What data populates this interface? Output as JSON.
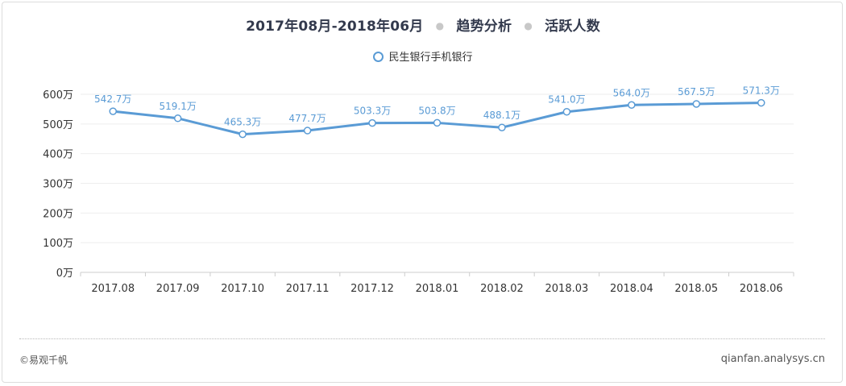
{
  "title": {
    "period": "2017年08月-2018年06月",
    "analysis": "趋势分析",
    "metric": "活跃人数"
  },
  "footer": {
    "copyright": "©易观千帆",
    "site": "qianfan.analysys.cn"
  },
  "colors": {
    "series": "#5a9bd5",
    "label": "#5a9bd5",
    "grid": "#eeeeee",
    "axis": "#cccccc"
  },
  "chart_data": {
    "type": "line",
    "categories": [
      "2017.08",
      "2017.09",
      "2017.10",
      "2017.11",
      "2017.12",
      "2018.01",
      "2018.02",
      "2018.03",
      "2018.04",
      "2018.05",
      "2018.06"
    ],
    "series": [
      {
        "name": "民生银行手机银行",
        "values": [
          542.7,
          519.1,
          465.3,
          477.7,
          503.3,
          503.8,
          488.1,
          541.0,
          564.0,
          567.5,
          571.3
        ],
        "labels": [
          "542.7万",
          "519.1万",
          "465.3万",
          "477.7万",
          "503.3万",
          "503.8万",
          "488.1万",
          "541.0万",
          "564.0万",
          "567.5万",
          "571.3万"
        ]
      }
    ],
    "yticks": [
      "0万",
      "100万",
      "200万",
      "300万",
      "400万",
      "500万",
      "600万"
    ],
    "ylim": [
      0,
      600
    ],
    "grid": true,
    "legend": "top-center"
  }
}
